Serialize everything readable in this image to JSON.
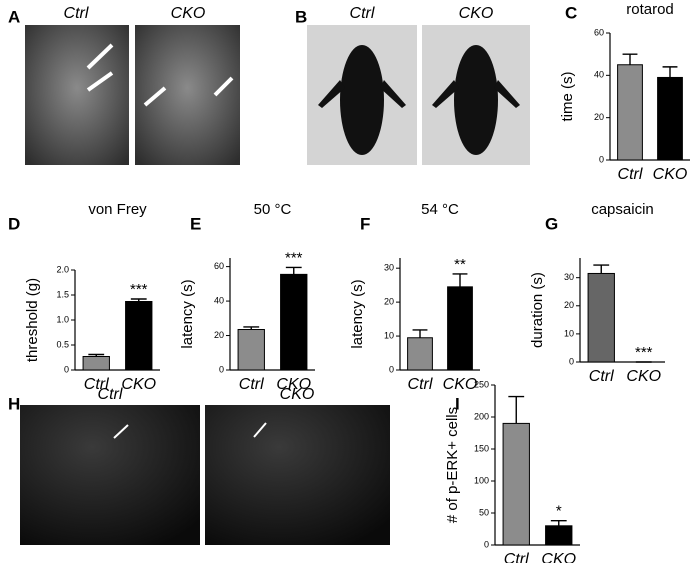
{
  "figure": {
    "panel_labels": [
      "A",
      "B",
      "C",
      "D",
      "E",
      "F",
      "G",
      "H",
      "I"
    ],
    "image_panels": [
      {
        "labels": [
          "Ctrl",
          "CKO"
        ]
      },
      {
        "labels": [
          "Ctrl",
          "CKO"
        ]
      },
      {
        "labels": [
          "Ctrl",
          "CKO"
        ]
      }
    ]
  },
  "chart_data": [
    {
      "type": "bar",
      "title": "rotarod",
      "ylabel": "time (s)",
      "categories": [
        "Ctrl",
        "CKO"
      ],
      "values": [
        45,
        39
      ],
      "errors": [
        5,
        5
      ],
      "colors": [
        "#8c8c8c",
        "#000000"
      ],
      "ylim": [
        0,
        60
      ],
      "yticks": [
        0,
        20,
        40,
        60
      ]
    },
    {
      "type": "bar",
      "title": "von Frey",
      "ylabel": "threshold (g)",
      "categories": [
        "Ctrl",
        "CKO"
      ],
      "values": [
        0.27,
        1.37
      ],
      "errors": [
        0.04,
        0.05
      ],
      "colors": [
        "#8c8c8c",
        "#000000"
      ],
      "ylim": [
        0,
        2.0
      ],
      "yticks": [
        0,
        0.5,
        {
          "value": 1.0,
          "label": "1.0"
        },
        1.5,
        {
          "value": 2.0,
          "label": "2.0"
        }
      ],
      "annotation": "***"
    },
    {
      "type": "bar",
      "title": "50 °C",
      "ylabel": "latency (s)",
      "categories": [
        "Ctrl",
        "CKO"
      ],
      "values": [
        23.5,
        55.5
      ],
      "errors": [
        1.5,
        4
      ],
      "colors": [
        "#8c8c8c",
        "#000000"
      ],
      "ylim": [
        0,
        65
      ],
      "yticks": [
        0,
        20,
        40,
        60
      ],
      "annotation": "***"
    },
    {
      "type": "bar",
      "title": "54 °C",
      "ylabel": "latency (s)",
      "categories": [
        "Ctrl",
        "CKO"
      ],
      "values": [
        9.5,
        24.5
      ],
      "errors": [
        2.3,
        3.8
      ],
      "colors": [
        "#8c8c8c",
        "#000000"
      ],
      "ylim": [
        0,
        33
      ],
      "yticks": [
        0,
        10,
        20,
        30
      ],
      "annotation": "**"
    },
    {
      "type": "bar",
      "title": "capsaicin",
      "ylabel": "duration (s)",
      "categories": [
        "Ctrl",
        "CKO"
      ],
      "values": [
        31.5,
        0
      ],
      "errors": [
        3,
        0
      ],
      "colors": [
        "#666666",
        "#000000"
      ],
      "ylim": [
        0,
        37
      ],
      "yticks": [
        0,
        10,
        20,
        30
      ],
      "annotation": "***"
    },
    {
      "type": "bar",
      "ylabel": "# of p-ERK+ cells",
      "categories": [
        "Ctrl",
        "CKO"
      ],
      "values": [
        190,
        30
      ],
      "errors": [
        42,
        8
      ],
      "colors": [
        "#8c8c8c",
        "#000000"
      ],
      "ylim": [
        0,
        250
      ],
      "yticks": [
        0,
        50,
        100,
        150,
        200,
        250
      ],
      "annotation": "*"
    }
  ]
}
